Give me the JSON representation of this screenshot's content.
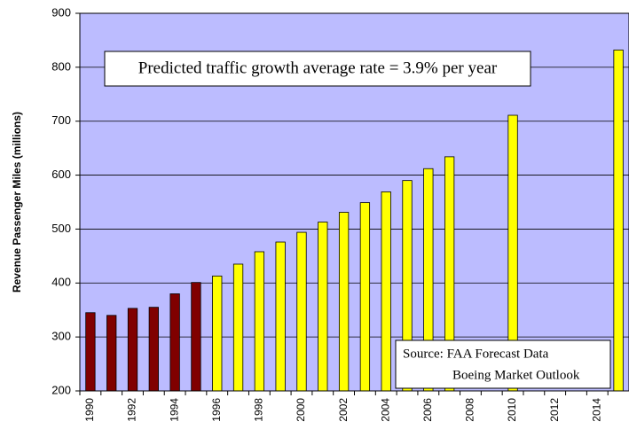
{
  "chart_data": {
    "type": "bar",
    "y_label": "Revenue Passenger Miles (millions)",
    "annotation": "Predicted traffic growth average rate = 3.9% per year",
    "source": [
      "Source: FAA Forecast Data",
      "Boeing Market Outlook"
    ],
    "categories": [
      "1990",
      null,
      "1992",
      null,
      "1994",
      null,
      "1996",
      null,
      "1998",
      null,
      "2000",
      null,
      "2002",
      null,
      "2004",
      null,
      "2006",
      null,
      "2008",
      null,
      "2010",
      null,
      "2012",
      null,
      "2014",
      null
    ],
    "values": [
      345,
      340,
      353,
      355,
      380,
      401,
      413,
      435,
      458,
      476,
      494,
      513,
      531,
      549,
      569,
      590,
      612,
      634,
      null,
      null,
      711,
      null,
      null,
      null,
      null,
      832
    ],
    "colors": [
      "#800000",
      "#800000",
      "#800000",
      "#800000",
      "#800000",
      "#800000",
      "#ffff00",
      "#ffff00",
      "#ffff00",
      "#ffff00",
      "#ffff00",
      "#ffff00",
      "#ffff00",
      "#ffff00",
      "#ffff00",
      "#ffff00",
      "#ffff00",
      "#ffff00",
      "#ffff00",
      "#ffff00",
      "#ffff00",
      "#ffff00",
      "#ffff00",
      "#ffff00",
      "#ffff00",
      "#ffff00"
    ],
    "background": "#bcbcff",
    "ylim": [
      200,
      900
    ],
    "yticks": [
      200,
      300,
      400,
      500,
      600,
      700,
      800,
      900
    ],
    "grid": true
  }
}
